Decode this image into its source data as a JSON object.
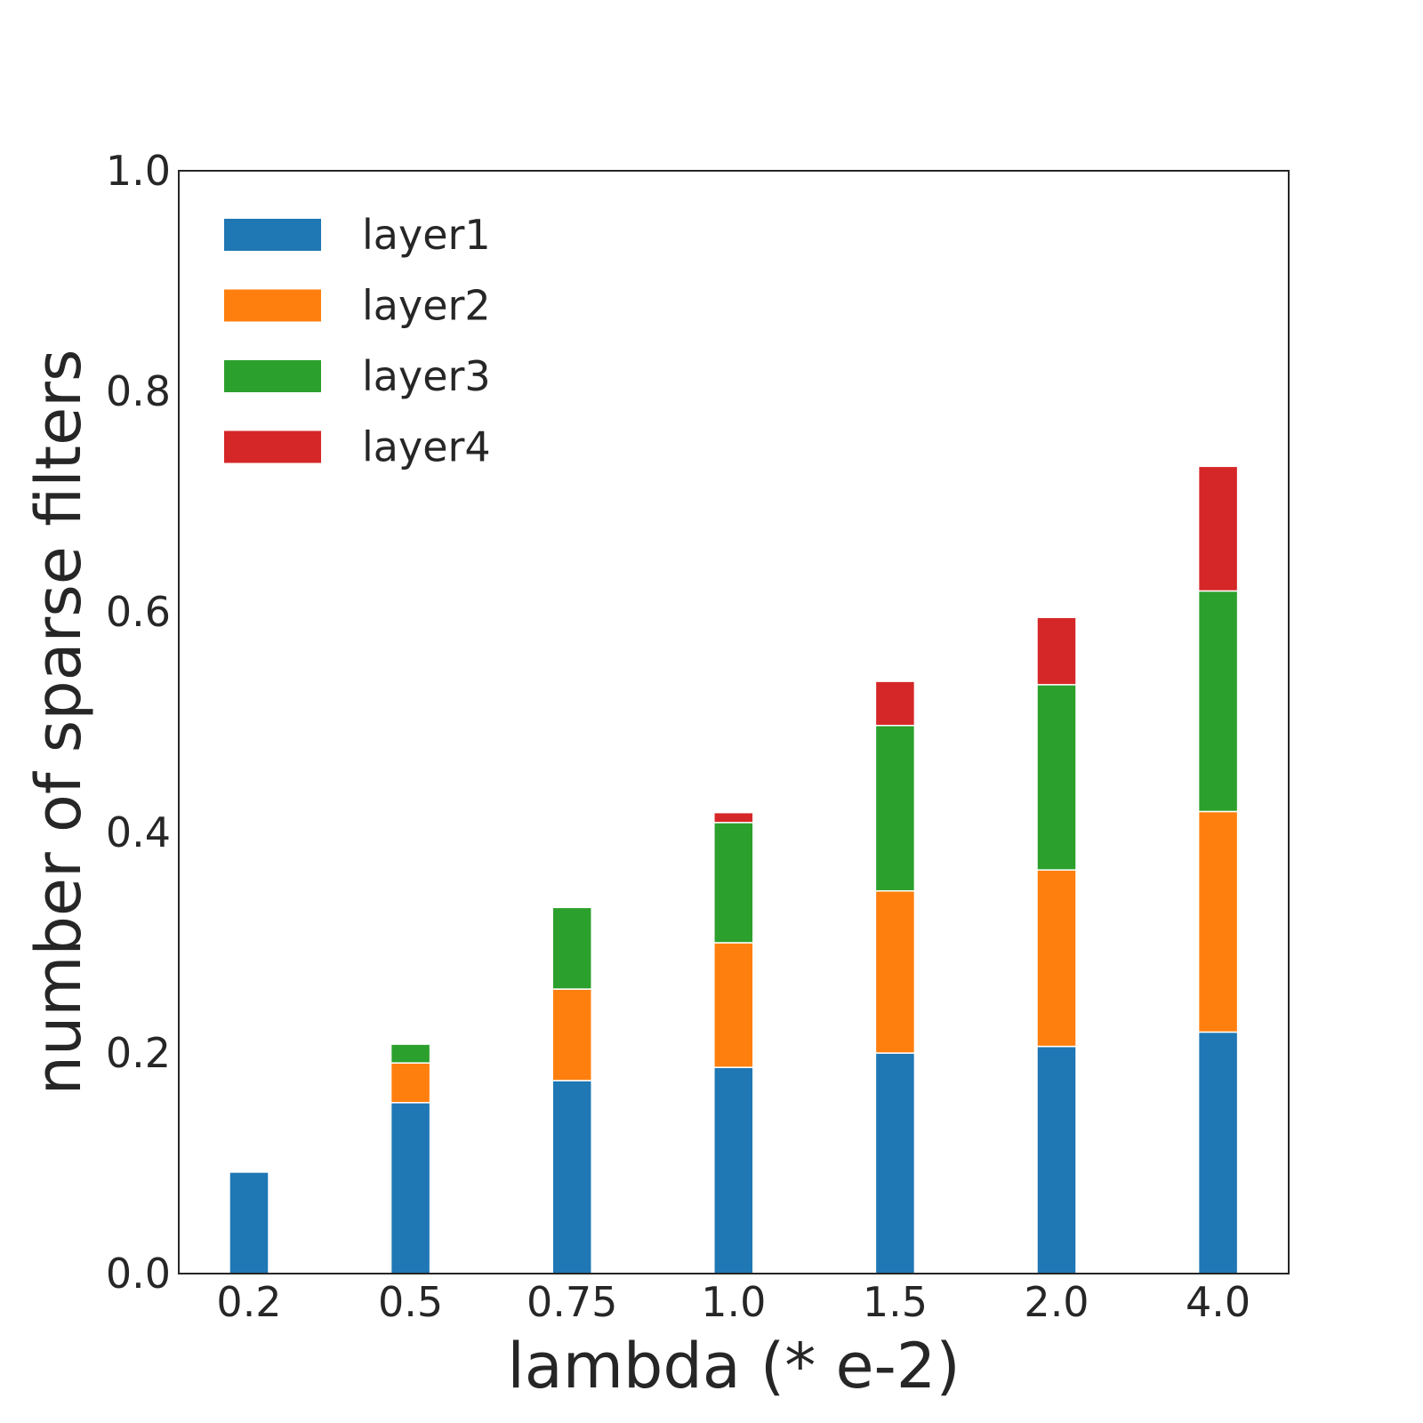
{
  "chart_data": {
    "type": "bar",
    "stacked": true,
    "title": "",
    "xlabel": "lambda (* e-2)",
    "ylabel": "number of sparse filters",
    "categories": [
      "0.2",
      "0.5",
      "0.75",
      "1.0",
      "1.5",
      "2.0",
      "4.0"
    ],
    "ylim": [
      0.0,
      1.0
    ],
    "yticks": [
      "0.0",
      "0.2",
      "0.4",
      "0.6",
      "0.8",
      "1.0"
    ],
    "grid": false,
    "legend_position": "top-left",
    "series": [
      {
        "name": "layer1",
        "color": "#1f77b4",
        "values": [
          0.092,
          0.155,
          0.175,
          0.187,
          0.2,
          0.206,
          0.219
        ]
      },
      {
        "name": "layer2",
        "color": "#ff7f0e",
        "values": [
          0.0,
          0.036,
          0.083,
          0.113,
          0.147,
          0.16,
          0.2
        ]
      },
      {
        "name": "layer3",
        "color": "#2ca02c",
        "values": [
          0.0,
          0.017,
          0.074,
          0.109,
          0.15,
          0.168,
          0.2
        ]
      },
      {
        "name": "layer4",
        "color": "#d62728",
        "values": [
          0.0,
          0.0,
          0.0,
          0.009,
          0.04,
          0.061,
          0.113
        ]
      }
    ]
  }
}
